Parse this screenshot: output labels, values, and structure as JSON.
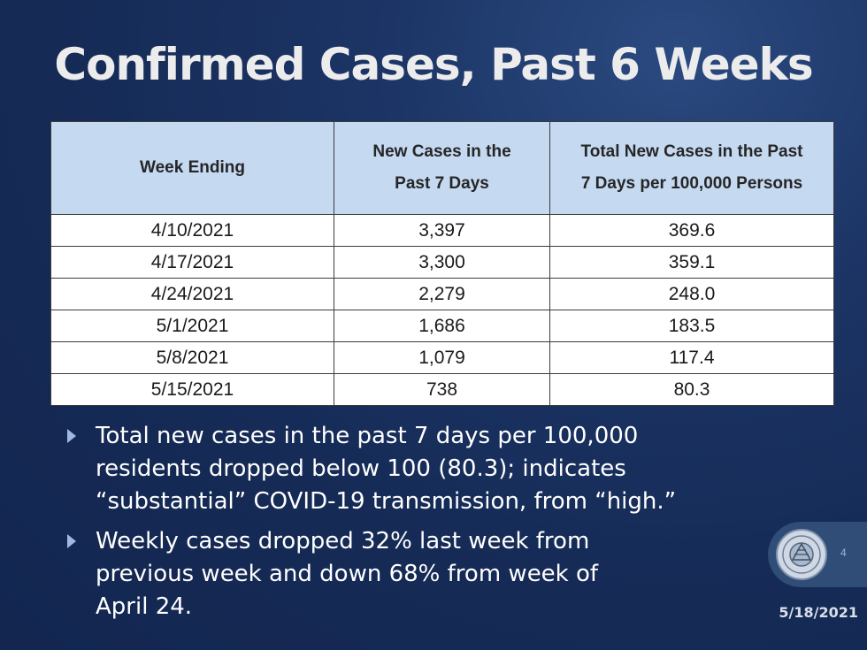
{
  "slide": {
    "title": "Confirmed Cases, Past 6 Weeks",
    "page_number": "4",
    "date": "5/18/2021"
  },
  "table": {
    "headers": [
      "Week Ending",
      "New Cases in the Past 7 Days",
      "Total New Cases in the Past 7 Days per 100,000 Persons"
    ],
    "header_lines": [
      [
        "Week Ending"
      ],
      [
        "New Cases in the",
        "Past 7 Days"
      ],
      [
        "Total New Cases in the Past",
        "7 Days per 100,000 Persons"
      ]
    ],
    "rows": [
      [
        "4/10/2021",
        "3,397",
        "369.6"
      ],
      [
        "4/17/2021",
        "3,300",
        "359.1"
      ],
      [
        "4/24/2021",
        "2,279",
        "248.0"
      ],
      [
        "5/1/2021",
        "1,686",
        "183.5"
      ],
      [
        "5/8/2021",
        "1,079",
        "117.4"
      ],
      [
        "5/15/2021",
        "738",
        "80.3"
      ]
    ]
  },
  "bullets": [
    {
      "lines": [
        "Total new cases in the past 7 days per 100,000",
        "residents dropped below 100 (80.3); indicates",
        "“substantial”  COVID-19 transmission, from “high.”"
      ]
    },
    {
      "lines": [
        "Weekly cases dropped 32% last week from",
        "previous week and down 68% from week of",
        "April 24."
      ]
    }
  ],
  "icons": {
    "bullet": "triangle-right-icon",
    "seal": "county-seal-icon"
  },
  "colors": {
    "background": "#152a55",
    "table_header": "#c5d9f1",
    "bullet_arrow": "#9fb9df"
  }
}
